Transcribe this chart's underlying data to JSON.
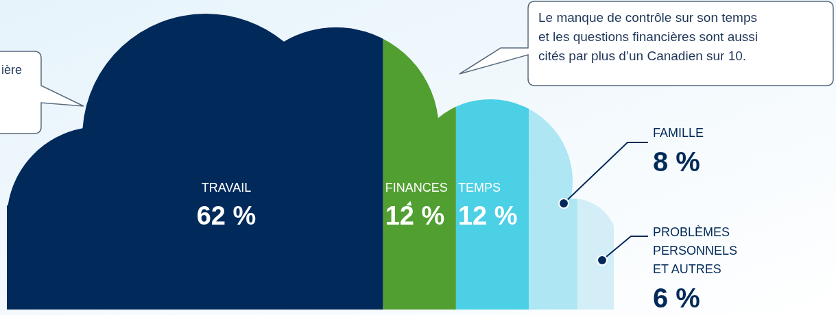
{
  "chart_data": {
    "type": "other",
    "categories": [
      "TRAVAIL",
      "FINANCES",
      "TEMPS",
      "FAMILLE",
      "PROBLÈMES\nPERSONNELS\nET AUTRES"
    ],
    "values": [
      62,
      12,
      12,
      8,
      6
    ],
    "value_labels": [
      "62 %",
      "12 %",
      "12 %",
      "8 %",
      "6 %"
    ],
    "colors": [
      "#012a5a",
      "#529f31",
      "#4bd0e6",
      "#aee6f4",
      "#d3eef6"
    ],
    "annotations": [
      "ière",
      "Le manque de contrôle sur son temps\net les questions financières sont aussi\ncités par plus d’un Canadien sur 10."
    ]
  }
}
